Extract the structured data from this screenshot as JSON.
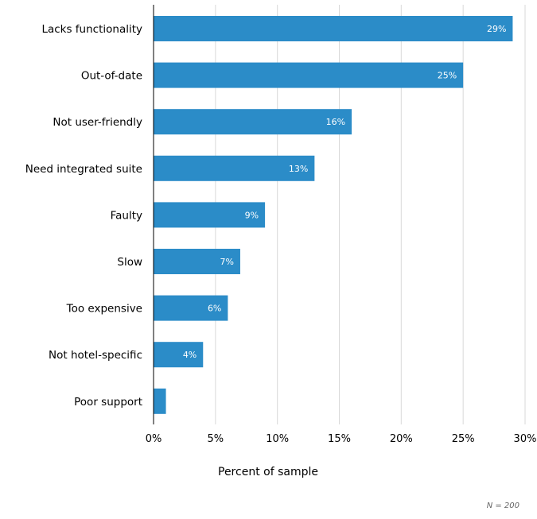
{
  "chart_data": {
    "type": "bar",
    "orientation": "horizontal",
    "categories": [
      "Lacks functionality",
      "Out-of-date",
      "Not user-friendly",
      "Need integrated suite",
      "Faulty",
      "Slow",
      "Too expensive",
      "Not hotel-specific",
      "Poor support"
    ],
    "values": [
      29,
      25,
      16,
      13,
      9,
      7,
      6,
      4,
      1
    ],
    "data_labels": [
      "29%",
      "25%",
      "16%",
      "13%",
      "9%",
      "7%",
      "6%",
      "4%",
      ""
    ],
    "title": "",
    "xlabel": "Percent of sample",
    "ylabel": "",
    "xlim": [
      0,
      30
    ],
    "xticks": [
      0,
      5,
      10,
      15,
      20,
      25,
      30
    ],
    "xtick_labels": [
      "0%",
      "5%",
      "10%",
      "15%",
      "20%",
      "25%",
      "30%"
    ],
    "grid": "vertical",
    "note": "N = 200",
    "colors": {
      "bar": "#2b8cc8",
      "grid": "#d9d9d9",
      "axis": "#000000",
      "label": "#000000",
      "data_label": "#ffffff",
      "note": "#666666"
    }
  }
}
